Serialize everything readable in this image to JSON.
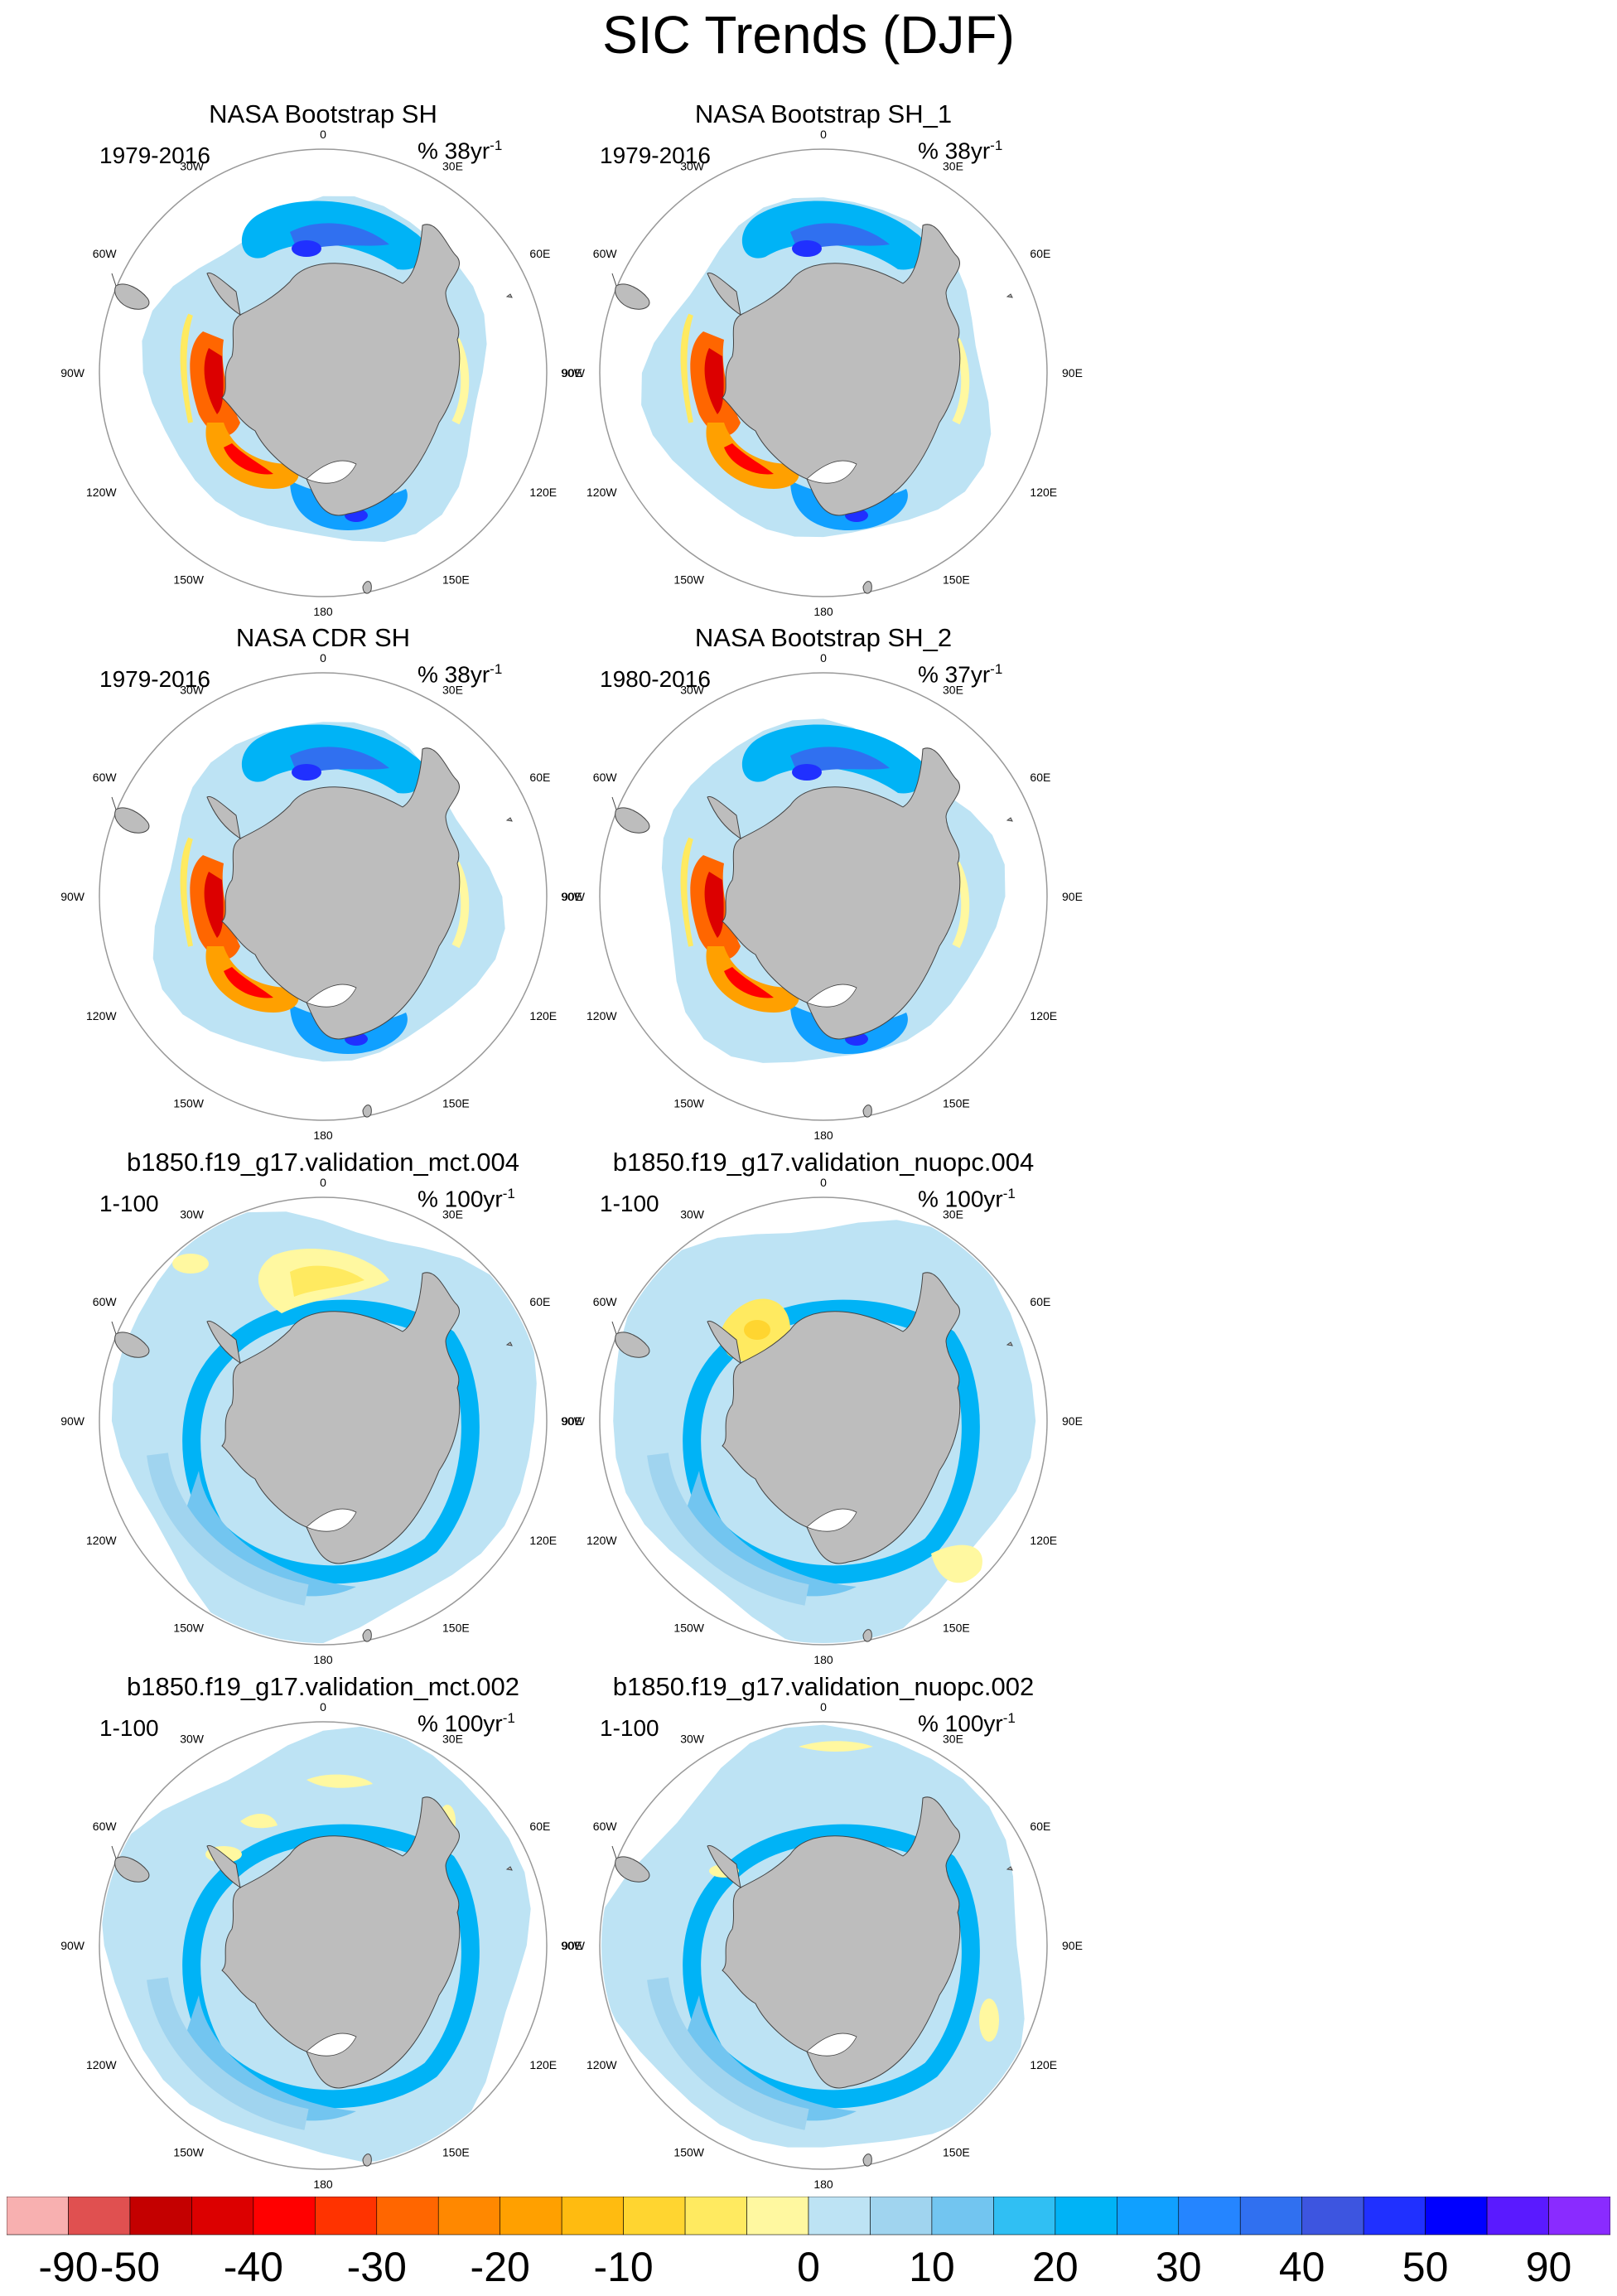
{
  "title": "SIC Trends (DJF)",
  "panels": [
    {
      "title": "NASA Bootstrap SH",
      "period": "1979-2016",
      "units_prefix": "% 38yr",
      "units_exp": "-1",
      "style": "obs"
    },
    {
      "title": "NASA Bootstrap SH_1",
      "period": "1979-2016",
      "units_prefix": "% 38yr",
      "units_exp": "-1",
      "style": "obs"
    },
    {
      "title": "NASA CDR SH",
      "period": "1979-2016",
      "units_prefix": "% 38yr",
      "units_exp": "-1",
      "style": "obs"
    },
    {
      "title": "NASA Bootstrap SH_2",
      "period": "1980-2016",
      "units_prefix": "% 37yr",
      "units_exp": "-1",
      "style": "obs"
    },
    {
      "title": "b1850.f19_g17.validation_mct.004",
      "period": "1-100",
      "units_prefix": "% 100yr",
      "units_exp": "-1",
      "style": "model_a"
    },
    {
      "title": "b1850.f19_g17.validation_nuopc.004",
      "period": "1-100",
      "units_prefix": "% 100yr",
      "units_exp": "-1",
      "style": "model_b"
    },
    {
      "title": "b1850.f19_g17.validation_mct.002",
      "period": "1-100",
      "units_prefix": "% 100yr",
      "units_exp": "-1",
      "style": "model_c"
    },
    {
      "title": "b1850.f19_g17.validation_nuopc.002",
      "period": "1-100",
      "units_prefix": "% 100yr",
      "units_exp": "-1",
      "style": "model_d"
    }
  ],
  "longitude_labels": [
    "0",
    "30E",
    "60E",
    "90E",
    "120E",
    "150E",
    "180",
    "150W",
    "120W",
    "90W",
    "60W",
    "30W"
  ],
  "colorbar": {
    "colors": [
      "#f8b0b0",
      "#e05050",
      "#c40000",
      "#dc0000",
      "#ff0000",
      "#ff3300",
      "#ff6600",
      "#ff8800",
      "#ffa000",
      "#ffbb10",
      "#ffd530",
      "#ffea60",
      "#fff8a0",
      "#bde3f4",
      "#a0d4ef",
      "#72c5f0",
      "#30bff3",
      "#00b3f6",
      "#10a0ff",
      "#2585ff",
      "#3070f0",
      "#3d55e0",
      "#2030ff",
      "#0000ff",
      "#5a1aff",
      "#8a2bff"
    ],
    "labels": [
      "-90",
      "-50",
      "-40",
      "-30",
      "-20",
      "-10",
      "0",
      "10",
      "20",
      "30",
      "40",
      "50",
      "90"
    ],
    "label_boundaries": [
      1,
      2,
      4,
      6,
      8,
      10,
      13,
      15,
      17,
      19,
      21,
      23,
      25
    ]
  },
  "colors": {
    "land": "#bdbdbd",
    "ice_base": "#bde3f4",
    "ocean": "#ffffff",
    "grid_circle": "#999999"
  }
}
